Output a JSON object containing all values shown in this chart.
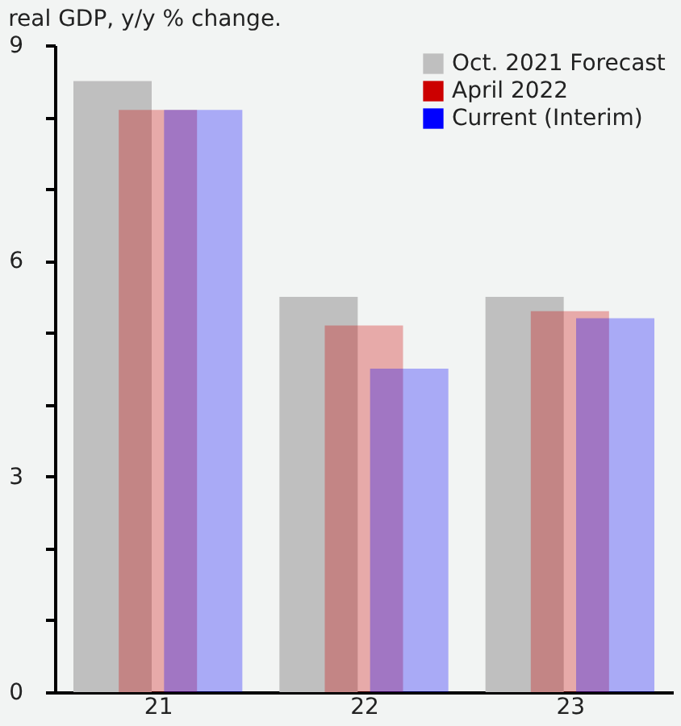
{
  "chart_data": {
    "type": "bar",
    "title": "real GDP, y/y % change.",
    "categories": [
      "21",
      "22",
      "23"
    ],
    "series": [
      {
        "name": "Oct. 2021 Forecast",
        "color": "#bfbfbf",
        "values": [
          8.5,
          5.5,
          5.5
        ]
      },
      {
        "name": "April 2022",
        "color": "#cc0000",
        "values": [
          8.1,
          5.1,
          5.3
        ]
      },
      {
        "name": "Current (Interim)",
        "color": "#0000ff",
        "values": [
          8.1,
          4.5,
          5.2
        ]
      }
    ],
    "ylim": [
      0,
      9
    ],
    "yticks": [
      0,
      {
        "value": 1,
        "label": null
      },
      {
        "value": 2,
        "label": null
      },
      3,
      {
        "value": 4,
        "label": null
      },
      {
        "value": 5,
        "label": null
      },
      6,
      {
        "value": 7,
        "label": null
      },
      {
        "value": 8,
        "label": null
      },
      9
    ],
    "grid": false,
    "legend": "top right"
  }
}
